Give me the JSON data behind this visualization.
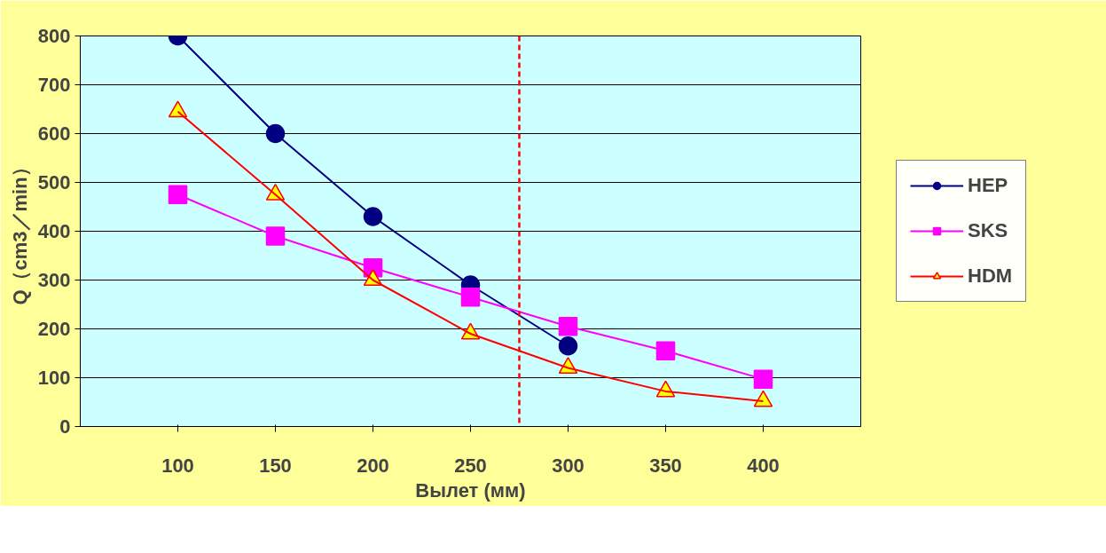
{
  "chart_data": {
    "type": "line",
    "xlabel": "Вылет (мм)",
    "ylabel": "Q（cm3／min）",
    "x": [
      100,
      150,
      200,
      250,
      300,
      350,
      400
    ],
    "xlim": [
      50,
      450
    ],
    "xticks": [
      100,
      150,
      200,
      250,
      300,
      350,
      400
    ],
    "ylim": [
      0,
      800
    ],
    "yticks": [
      0,
      100,
      200,
      300,
      400,
      500,
      600,
      700,
      800
    ],
    "grid": "y",
    "legend": "right",
    "ref_lines": [
      {
        "axis": "x",
        "value": 275,
        "color": "#ff0000",
        "line_style": "dashed"
      }
    ],
    "series": [
      {
        "name": "HEP",
        "color": "#000080",
        "marker": "circle",
        "values": [
          800,
          600,
          430,
          290,
          165,
          null,
          null
        ]
      },
      {
        "name": "SKS",
        "color": "#ff00ff",
        "marker": "square",
        "values": [
          475,
          390,
          325,
          265,
          205,
          155,
          97
        ]
      },
      {
        "name": "HDM",
        "color": "#ff0000",
        "marker": "triangle",
        "values": [
          645,
          475,
          300,
          190,
          120,
          72,
          52
        ]
      }
    ]
  }
}
